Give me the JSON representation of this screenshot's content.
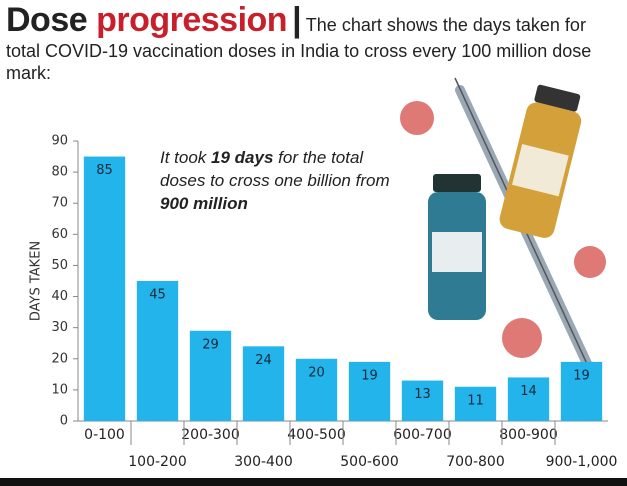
{
  "chart_data": {
    "type": "bar",
    "title": "Dose progression",
    "subtitle": "The chart shows the days taken for total COVID-19 vaccination doses in India to cross every 100 million dose mark:",
    "annotation": [
      "It took ",
      "19 days",
      " for the total doses to cross one billion from ",
      "900 million"
    ],
    "y_label": "DAYS TAKEN",
    "categories": [
      "0-100",
      "100-200",
      "200-300",
      "300-400",
      "400-500",
      "500-600",
      "600-700",
      "700-800",
      "800-900",
      "900-1,000"
    ],
    "values": [
      85,
      45,
      29,
      24,
      20,
      19,
      13,
      11,
      14,
      19
    ],
    "color": "#22b4ea",
    "ylim": [
      0,
      90
    ],
    "yticks": [
      0,
      10,
      20,
      30,
      40,
      50,
      60,
      70,
      80,
      90
    ]
  }
}
